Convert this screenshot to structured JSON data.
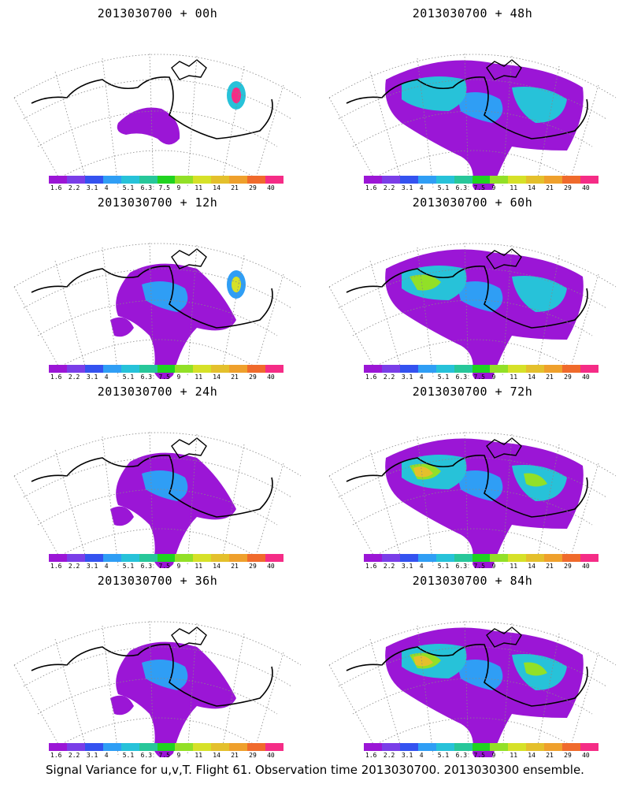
{
  "colorbar": {
    "labels": [
      "1.6",
      "2.2",
      "3.1",
      "4",
      "5.1",
      "6.3",
      "7.5",
      "9",
      "11",
      "14",
      "21",
      "29",
      "40"
    ],
    "colors": [
      "#9b16d6",
      "#7a3ee8",
      "#3452f0",
      "#2f9ef5",
      "#27c2d9",
      "#27c79a",
      "#20d320",
      "#92e027",
      "#d6e128",
      "#e4c02c",
      "#efa02c",
      "#f06a2c",
      "#f52c86"
    ]
  },
  "panels": [
    {
      "title": "2013030700 + 00h",
      "col": 0,
      "row": 0,
      "level": 0
    },
    {
      "title": "2013030700 + 12h",
      "col": 0,
      "row": 1,
      "level": 1
    },
    {
      "title": "2013030700 + 24h",
      "col": 0,
      "row": 2,
      "level": 2
    },
    {
      "title": "2013030700 + 36h",
      "col": 0,
      "row": 3,
      "level": 3
    },
    {
      "title": "2013030700 + 48h",
      "col": 1,
      "row": 0,
      "level": 4
    },
    {
      "title": "2013030700 + 60h",
      "col": 1,
      "row": 1,
      "level": 5
    },
    {
      "title": "2013030700 + 72h",
      "col": 1,
      "row": 2,
      "level": 6
    },
    {
      "title": "2013030700 + 84h",
      "col": 1,
      "row": 3,
      "level": 7
    }
  ],
  "caption": "Signal Variance for u,v,T. Flight 61. Observation time 2013030700. 2013030300 ensemble."
}
